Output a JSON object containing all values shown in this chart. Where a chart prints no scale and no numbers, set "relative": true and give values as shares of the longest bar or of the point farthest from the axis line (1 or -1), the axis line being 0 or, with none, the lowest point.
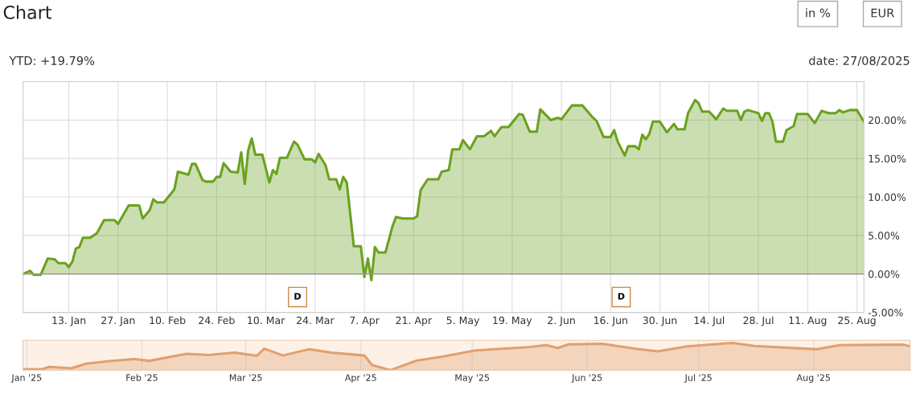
{
  "chart_data": [
    {
      "type": "area",
      "title": "Chart",
      "annotations": [
        "YTD: +19.79%",
        "date: 27/08/2025",
        "in %",
        "EUR",
        {
          "text": "D",
          "x": "2025-03-19",
          "y": -3
        },
        {
          "text": "D",
          "x": "2025-06-19",
          "y": -3
        }
      ],
      "x": [
        "2024-12-31",
        "2025-01-02",
        "2025-01-03",
        "2025-01-05",
        "2025-01-07",
        "2025-01-09",
        "2025-01-10",
        "2025-01-12",
        "2025-01-13",
        "2025-01-14",
        "2025-01-15",
        "2025-01-16",
        "2025-01-17",
        "2025-01-19",
        "2025-01-21",
        "2025-01-23",
        "2025-01-26",
        "2025-01-27",
        "2025-01-30",
        "2025-02-02",
        "2025-02-03",
        "2025-02-05",
        "2025-02-06",
        "2025-02-07",
        "2025-02-09",
        "2025-02-12",
        "2025-02-13",
        "2025-02-16",
        "2025-02-17",
        "2025-02-18",
        "2025-02-20",
        "2025-02-21",
        "2025-02-23",
        "2025-02-24",
        "2025-02-25",
        "2025-02-26",
        "2025-02-28",
        "2025-03-02",
        "2025-03-03",
        "2025-03-04",
        "2025-03-05",
        "2025-03-06",
        "2025-03-07",
        "2025-03-09",
        "2025-03-11",
        "2025-03-12",
        "2025-03-13",
        "2025-03-14",
        "2025-03-16",
        "2025-03-18",
        "2025-03-19",
        "2025-03-21",
        "2025-03-23",
        "2025-03-24",
        "2025-03-25",
        "2025-03-27",
        "2025-03-28",
        "2025-03-30",
        "2025-03-31",
        "2025-04-01",
        "2025-04-02",
        "2025-04-04",
        "2025-04-06",
        "2025-04-07",
        "2025-04-08",
        "2025-04-09",
        "2025-04-10",
        "2025-04-11",
        "2025-04-13",
        "2025-04-15",
        "2025-04-16",
        "2025-04-18",
        "2025-04-21",
        "2025-04-22",
        "2025-04-23",
        "2025-04-25",
        "2025-04-28",
        "2025-04-29",
        "2025-05-01",
        "2025-05-02",
        "2025-05-04",
        "2025-05-05",
        "2025-05-07",
        "2025-05-09",
        "2025-05-11",
        "2025-05-13",
        "2025-05-14",
        "2025-05-16",
        "2025-05-18",
        "2025-05-21",
        "2025-05-22",
        "2025-05-24",
        "2025-05-26",
        "2025-05-27",
        "2025-05-30",
        "2025-06-01",
        "2025-06-02",
        "2025-06-05",
        "2025-06-08",
        "2025-06-11",
        "2025-06-12",
        "2025-06-14",
        "2025-06-16",
        "2025-06-17",
        "2025-06-18",
        "2025-06-20",
        "2025-06-21",
        "2025-06-23",
        "2025-06-24",
        "2025-06-25",
        "2025-06-26",
        "2025-06-27",
        "2025-06-28",
        "2025-06-30",
        "2025-07-02",
        "2025-07-04",
        "2025-07-05",
        "2025-07-07",
        "2025-07-08",
        "2025-07-10",
        "2025-07-11",
        "2025-07-12",
        "2025-07-14",
        "2025-07-16",
        "2025-07-18",
        "2025-07-19",
        "2025-07-22",
        "2025-07-23",
        "2025-07-24",
        "2025-07-25",
        "2025-07-28",
        "2025-07-29",
        "2025-07-30",
        "2025-07-31",
        "2025-08-01",
        "2025-08-02",
        "2025-08-04",
        "2025-08-05",
        "2025-08-07",
        "2025-08-08",
        "2025-08-11",
        "2025-08-13",
        "2025-08-15",
        "2025-08-17",
        "2025-08-19",
        "2025-08-20",
        "2025-08-21",
        "2025-08-23",
        "2025-08-25",
        "2025-08-27"
      ],
      "series": [
        {
          "color": "#6ba11f",
          "values": [
            0,
            0.4,
            -0.1,
            -0.1,
            2.0,
            1.9,
            1.4,
            1.4,
            0.9,
            1.6,
            3.3,
            3.5,
            4.7,
            4.7,
            5.3,
            7.0,
            7.0,
            6.5,
            8.9,
            8.9,
            7.2,
            8.3,
            9.7,
            9.3,
            9.3,
            11.0,
            13.3,
            12.9,
            14.3,
            14.3,
            12.2,
            12.0,
            12.0,
            12.6,
            12.6,
            14.4,
            13.3,
            13.2,
            15.8,
            11.7,
            16.1,
            17.6,
            15.5,
            15.5,
            11.9,
            13.5,
            13.0,
            15.1,
            15.1,
            17.2,
            16.8,
            14.9,
            14.9,
            14.5,
            15.6,
            14.1,
            12.3,
            12.3,
            11.0,
            12.6,
            11.9,
            3.6,
            3.6,
            -0.4,
            2.0,
            -0.8,
            3.5,
            2.8,
            2.8,
            6.2,
            7.4,
            7.2,
            7.2,
            7.5,
            10.9,
            12.3,
            12.3,
            13.3,
            13.5,
            16.2,
            16.2,
            17.4,
            16.2,
            17.9,
            17.9,
            18.6,
            17.9,
            19.1,
            19.1,
            20.8,
            20.7,
            18.5,
            18.5,
            21.4,
            20.0,
            20.3,
            20.1,
            21.9,
            21.9,
            20.3,
            19.9,
            17.8,
            17.8,
            18.7,
            17.2,
            15.4,
            16.6,
            16.6,
            16.2,
            18.1,
            17.5,
            18.2,
            19.8,
            19.8,
            18.4,
            19.5,
            18.8,
            18.8,
            20.9,
            22.6,
            22.2,
            21.1,
            21.1,
            20.1,
            21.5,
            21.2,
            21.2,
            20.0,
            21.1,
            21.3,
            20.9,
            19.9,
            20.9,
            20.9,
            19.8,
            17.2,
            17.2,
            18.7,
            19.2,
            20.8,
            20.8,
            19.6,
            21.2,
            20.9,
            20.9,
            21.3,
            21.0,
            21.3,
            21.3,
            19.8
          ]
        }
      ],
      "xlim": [
        "2024-12-31",
        "2025-08-27"
      ],
      "xticks": [
        {
          "value": "2025-01-13",
          "label": "13. Jan"
        },
        {
          "value": "2025-01-27",
          "label": "27. Jan"
        },
        {
          "value": "2025-02-10",
          "label": "10. Feb"
        },
        {
          "value": "2025-02-24",
          "label": "24. Feb"
        },
        {
          "value": "2025-03-10",
          "label": "10. Mar"
        },
        {
          "value": "2025-03-24",
          "label": "24. Mar"
        },
        {
          "value": "2025-04-07",
          "label": "7. Apr"
        },
        {
          "value": "2025-04-21",
          "label": "21. Apr"
        },
        {
          "value": "2025-05-05",
          "label": "5. May"
        },
        {
          "value": "2025-05-19",
          "label": "19. May"
        },
        {
          "value": "2025-06-02",
          "label": "2. Jun"
        },
        {
          "value": "2025-06-16",
          "label": "16. Jun"
        },
        {
          "value": "2025-06-30",
          "label": "30. Jun"
        },
        {
          "value": "2025-07-14",
          "label": "14. Jul"
        },
        {
          "value": "2025-07-28",
          "label": "28. Jul"
        },
        {
          "value": "2025-08-11",
          "label": "11. Aug"
        },
        {
          "value": "2025-08-25",
          "label": "25. Aug"
        }
      ],
      "ylim": [
        -5,
        25
      ],
      "yticks": [
        {
          "value": -5,
          "label": "-5.00%"
        },
        {
          "value": 0,
          "label": "0.00%"
        },
        {
          "value": 5,
          "label": "5.00%"
        },
        {
          "value": 10,
          "label": "10.00%"
        },
        {
          "value": 15,
          "label": "15.00%"
        },
        {
          "value": 20,
          "label": "20.00%"
        }
      ],
      "ref_lines": [
        {
          "axis": "y",
          "value": 0,
          "color": "#999999"
        }
      ],
      "grid": true,
      "marker": "none",
      "line_style": "solid"
    },
    {
      "type": "area",
      "relative": true,
      "tick_labels": "x",
      "grid": "x",
      "x": [
        "2024-12-31",
        "2025-01-05",
        "2025-01-07",
        "2025-01-13",
        "2025-01-17",
        "2025-01-23",
        "2025-01-30",
        "2025-02-03",
        "2025-02-13",
        "2025-02-19",
        "2025-02-26",
        "2025-03-04",
        "2025-03-06",
        "2025-03-11",
        "2025-03-18",
        "2025-03-24",
        "2025-04-02",
        "2025-04-04",
        "2025-04-09",
        "2025-04-16",
        "2025-04-23",
        "2025-05-02",
        "2025-05-16",
        "2025-05-21",
        "2025-05-24",
        "2025-05-27",
        "2025-06-05",
        "2025-06-14",
        "2025-06-20",
        "2025-06-28",
        "2025-07-10",
        "2025-07-16",
        "2025-08-02",
        "2025-08-08",
        "2025-08-25",
        "2025-08-27"
      ],
      "series": [
        {
          "color": "#e0a070",
          "values": [
            0.03,
            0.03,
            0.12,
            0.07,
            0.24,
            0.33,
            0.41,
            0.34,
            0.6,
            0.56,
            0.65,
            0.53,
            0.79,
            0.54,
            0.77,
            0.65,
            0.54,
            0.19,
            0,
            0.35,
            0.5,
            0.73,
            0.85,
            0.92,
            0.82,
            0.95,
            0.97,
            0.79,
            0.69,
            0.88,
            1,
            0.89,
            0.77,
            0.92,
            0.94,
            0.88
          ]
        }
      ],
      "xlim": [
        "2024-12-31",
        "2025-08-27"
      ],
      "xticks": [
        {
          "value": "2025-01-01",
          "label": "Jan '25"
        },
        {
          "value": "2025-02-01",
          "label": "Feb '25"
        },
        {
          "value": "2025-03-01",
          "label": "Mar '25"
        },
        {
          "value": "2025-04-01",
          "label": "Apr '25"
        },
        {
          "value": "2025-05-01",
          "label": "May '25"
        },
        {
          "value": "2025-06-01",
          "label": "Jun '25"
        },
        {
          "value": "2025-07-01",
          "label": "Jul '25"
        },
        {
          "value": "2025-08-01",
          "label": "Aug '25"
        }
      ]
    }
  ]
}
